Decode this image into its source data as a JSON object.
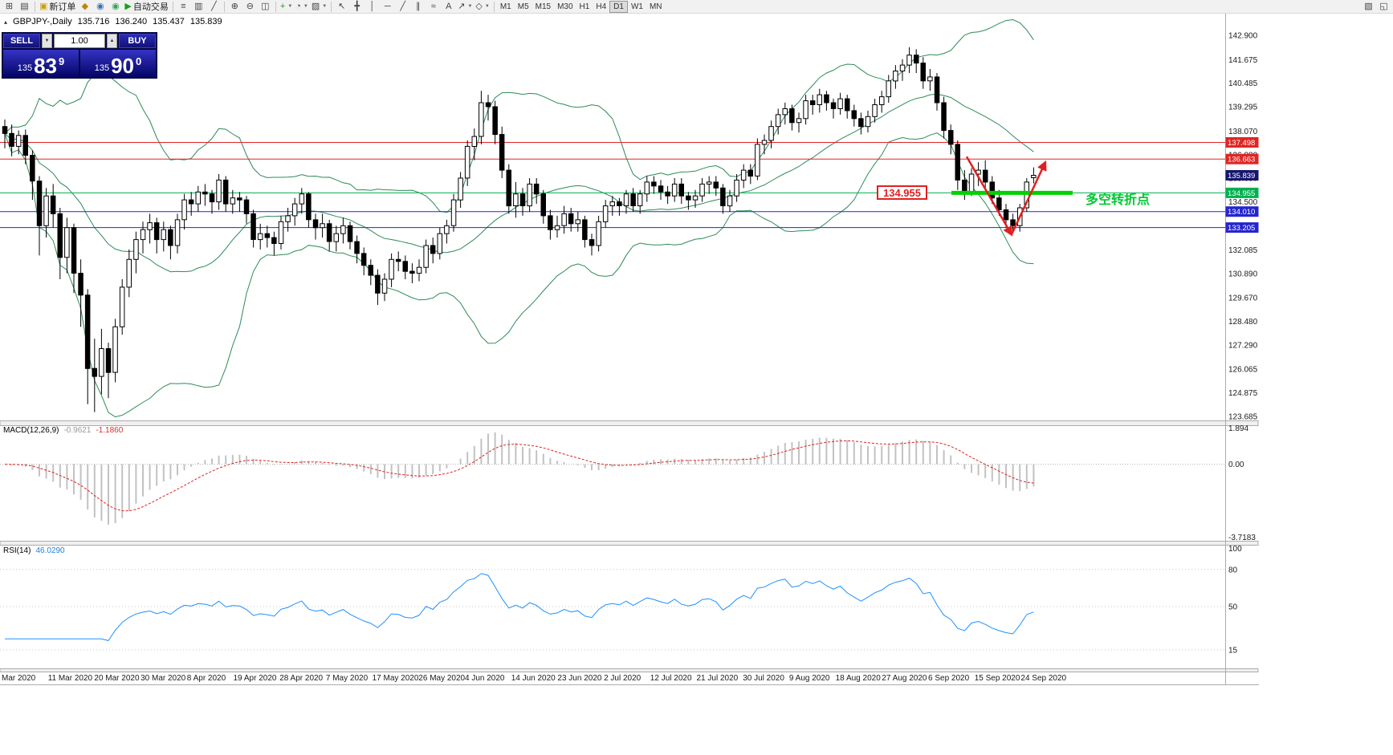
{
  "toolbar": {
    "items_left": [
      {
        "name": "new-chart-button",
        "glyph": "⊞"
      },
      {
        "name": "profiles-button",
        "glyph": "▤"
      },
      {
        "sep": true
      },
      {
        "name": "new-order-button",
        "glyph": "▣",
        "color": "#c8a016",
        "label": "新订单"
      },
      {
        "name": "experts-button",
        "glyph": "◆",
        "color": "#b8860b"
      },
      {
        "name": "alerts-button",
        "glyph": "◉",
        "color": "#3b6fb4"
      },
      {
        "name": "news-button",
        "glyph": "◉",
        "color": "#3ba05a"
      },
      {
        "name": "autotrading-button",
        "glyph": "▶",
        "color": "#18a018",
        "label": "自动交易"
      },
      {
        "sep": true
      },
      {
        "name": "chart-bars-button",
        "glyph": "≡"
      },
      {
        "name": "chart-candles-button",
        "glyph": "▥"
      },
      {
        "name": "chart-line-button",
        "glyph": "╱"
      },
      {
        "sep": true
      },
      {
        "name": "zoom-in-button",
        "glyph": "⊕"
      },
      {
        "name": "zoom-out-button",
        "glyph": "⊖"
      },
      {
        "name": "tile-windows-button",
        "glyph": "◫"
      },
      {
        "sep": true
      },
      {
        "name": "indicators-button",
        "glyph": "+",
        "color": "#18a018",
        "dropdown": true
      },
      {
        "name": "periods-button",
        "glyph": "◔",
        "dropdown": true
      },
      {
        "name": "templates-button",
        "glyph": "▨",
        "dropdown": true
      },
      {
        "sep": true
      },
      {
        "name": "cursor-button",
        "glyph": "↖"
      },
      {
        "name": "crosshair-button",
        "glyph": "╋"
      },
      {
        "name": "vline-button",
        "glyph": "│"
      },
      {
        "name": "hline-button",
        "glyph": "─"
      },
      {
        "name": "trendline-button",
        "glyph": "╱"
      },
      {
        "name": "channel-button",
        "glyph": "∥"
      },
      {
        "name": "fibonacci-button",
        "glyph": "≈"
      },
      {
        "name": "text-button",
        "glyph": "A"
      },
      {
        "name": "arrows-button",
        "glyph": "↗",
        "dropdown": true
      },
      {
        "name": "shapes-button",
        "glyph": "◇",
        "dropdown": true
      },
      {
        "sep": true
      }
    ],
    "timeframes": [
      "M1",
      "M5",
      "M15",
      "M30",
      "H1",
      "H4",
      "D1",
      "W1",
      "MN"
    ],
    "active_timeframe": "D1",
    "items_right": [
      {
        "name": "charts-window-button",
        "glyph": "▧"
      },
      {
        "name": "expand-button",
        "glyph": "◱"
      }
    ]
  },
  "symbol_info": {
    "symbol": "GBPJPY-,Daily",
    "open": "135.716",
    "high": "136.240",
    "low": "135.437",
    "close": "135.839"
  },
  "trade_panel": {
    "sell_label": "SELL",
    "buy_label": "BUY",
    "volume": "1.00",
    "sell_price": {
      "prefix": "135",
      "big": "83",
      "pip": "9"
    },
    "buy_price": {
      "prefix": "135",
      "big": "90",
      "pip": "0"
    }
  },
  "indicators": {
    "macd": {
      "name": "MACD(12,26,9)",
      "value1": "-0.9621",
      "value2": "-1.1860",
      "axis": [
        "1.894",
        "0.00",
        "-3.7183"
      ]
    },
    "rsi": {
      "name": "RSI(14)",
      "value": "46.0290",
      "axis": [
        "100",
        "80",
        "50",
        "15"
      ],
      "levels": [
        80,
        50,
        15
      ],
      "period": 14
    }
  },
  "annotations": {
    "price_callout": {
      "text": "134.955",
      "bar": 126.3,
      "price": 134.955
    },
    "turning_point": {
      "text": "多空转折点",
      "bar": 156.5,
      "price": 134.8,
      "color": "#00c832"
    },
    "support_segment": {
      "price": 134.955,
      "from_bar": 137.1,
      "to_bar": 154.6,
      "color": "#00d200",
      "width": 5
    },
    "v_pattern": {
      "color": "#e02020",
      "segments": [
        [
          [
            139.3,
            136.78
          ],
          [
            145.8,
            132.85
          ]
        ],
        [
          [
            145.8,
            132.85
          ],
          [
            150.7,
            136.5
          ]
        ]
      ]
    }
  },
  "chart_data": {
    "type": "candlestick",
    "symbol": "GBPJPY",
    "period": "Daily",
    "price_axis": [
      "142.900",
      "141.675",
      "140.485",
      "139.295",
      "138.070",
      "136.880",
      "135.690",
      "134.500",
      "132.085",
      "130.890",
      "129.670",
      "128.480",
      "127.290",
      "126.065",
      "124.875",
      "123.685"
    ],
    "hlines": [
      {
        "price": 137.498,
        "label": "137.498",
        "color": "#e02525",
        "label_bg": "#e02525"
      },
      {
        "price": 136.663,
        "label": "136.663",
        "color": "#e02525",
        "label_bg": "#e02525"
      },
      {
        "price": 134.955,
        "label": "134.955",
        "color": "#00b050",
        "label_bg": "#00b050"
      },
      {
        "price": 134.01,
        "label": "134.010",
        "color": "#2525d0",
        "label_bg": "#2525d0"
      },
      {
        "price": 133.205,
        "label": "133.205",
        "color": "#2525d0",
        "label_bg": "#2525d0"
      }
    ],
    "current_price": {
      "value": "135.839",
      "label_bg": "#16166e"
    },
    "bollinger": {
      "period": 20,
      "deviation": 2,
      "color": "#2e8b57"
    },
    "macd_params": {
      "fast": 12,
      "slow": 26,
      "signal": 9
    },
    "dates": [
      "Mar 2020",
      "11 Mar 2020",
      "20 Mar 2020",
      "30 Mar 2020",
      "8 Apr 2020",
      "19 Apr 2020",
      "28 Apr 2020",
      "7 May 2020",
      "17 May 2020",
      "26 May 2020",
      "4 Jun 2020",
      "14 Jun 2020",
      "23 Jun 2020",
      "2 Jul 2020",
      "12 Jul 2020",
      "21 Jul 2020",
      "30 Jul 2020",
      "9 Aug 2020",
      "18 Aug 2020",
      "27 Aug 2020",
      "6 Sep 2020",
      "15 Sep 2020",
      "24 Sep 2020"
    ],
    "candles": [
      [
        138.3,
        138.65,
        137.2,
        137.95
      ],
      [
        137.95,
        138.4,
        136.8,
        137.3
      ],
      [
        137.3,
        138.1,
        136.9,
        137.85
      ],
      [
        137.85,
        138.15,
        136.4,
        136.85
      ],
      [
        136.85,
        137.1,
        134.6,
        135.55
      ],
      [
        135.55,
        135.8,
        131.8,
        133.3
      ],
      [
        133.3,
        135.2,
        132.7,
        134.8
      ],
      [
        134.8,
        135.4,
        133.2,
        133.9
      ],
      [
        133.9,
        134.2,
        130.6,
        131.7
      ],
      [
        131.7,
        133.7,
        130.9,
        133.2
      ],
      [
        133.2,
        133.4,
        129.9,
        130.9
      ],
      [
        130.9,
        131.6,
        128.2,
        129.8
      ],
      [
        129.8,
        130.1,
        124.3,
        126.1
      ],
      [
        126.1,
        127.6,
        123.9,
        125.7
      ],
      [
        125.7,
        128.1,
        124.8,
        127.1
      ],
      [
        127.1,
        127.4,
        124.6,
        125.9
      ],
      [
        125.9,
        128.6,
        125.4,
        128.2
      ],
      [
        128.2,
        130.6,
        127.8,
        130.2
      ],
      [
        130.2,
        132.1,
        129.7,
        131.6
      ],
      [
        131.6,
        133.0,
        130.9,
        132.6
      ],
      [
        132.6,
        133.5,
        131.9,
        133.1
      ],
      [
        133.1,
        133.9,
        132.4,
        133.45
      ],
      [
        133.45,
        133.7,
        131.9,
        132.6
      ],
      [
        132.6,
        133.5,
        132.0,
        133.1
      ],
      [
        133.1,
        133.3,
        131.6,
        132.3
      ],
      [
        132.3,
        133.9,
        131.9,
        133.6
      ],
      [
        133.6,
        134.9,
        133.1,
        134.6
      ],
      [
        134.6,
        135.0,
        133.8,
        134.4
      ],
      [
        134.4,
        135.3,
        134.0,
        135.0
      ],
      [
        135.0,
        135.4,
        134.3,
        134.9
      ],
      [
        134.9,
        135.1,
        133.9,
        134.5
      ],
      [
        134.5,
        135.9,
        134.1,
        135.6
      ],
      [
        135.6,
        135.8,
        134.0,
        134.4
      ],
      [
        134.4,
        135.1,
        133.9,
        134.7
      ],
      [
        134.7,
        135.0,
        134.0,
        134.6
      ],
      [
        134.6,
        134.8,
        133.4,
        133.9
      ],
      [
        133.9,
        134.1,
        132.2,
        132.6
      ],
      [
        132.6,
        133.4,
        132.1,
        132.9
      ],
      [
        132.9,
        133.3,
        132.2,
        132.7
      ],
      [
        132.7,
        133.0,
        131.8,
        132.4
      ],
      [
        132.4,
        133.8,
        132.1,
        133.5
      ],
      [
        133.5,
        134.2,
        133.0,
        133.8
      ],
      [
        133.8,
        134.7,
        133.3,
        134.4
      ],
      [
        134.4,
        135.2,
        133.9,
        134.9
      ],
      [
        134.9,
        135.0,
        133.2,
        133.6
      ],
      [
        133.6,
        133.9,
        132.6,
        133.2
      ],
      [
        133.2,
        133.9,
        132.7,
        133.4
      ],
      [
        133.4,
        133.6,
        132.0,
        132.5
      ],
      [
        132.5,
        133.3,
        132.0,
        132.9
      ],
      [
        132.9,
        133.7,
        132.4,
        133.3
      ],
      [
        133.3,
        133.5,
        132.1,
        132.5
      ],
      [
        132.5,
        132.8,
        131.4,
        131.9
      ],
      [
        131.9,
        132.2,
        130.8,
        131.3
      ],
      [
        131.3,
        131.6,
        130.3,
        130.8
      ],
      [
        130.8,
        131.1,
        129.3,
        129.9
      ],
      [
        129.9,
        130.9,
        129.5,
        130.6
      ],
      [
        130.6,
        131.9,
        130.2,
        131.6
      ],
      [
        131.6,
        132.0,
        131.0,
        131.5
      ],
      [
        131.5,
        131.8,
        130.6,
        131.0
      ],
      [
        131.0,
        131.4,
        130.4,
        130.9
      ],
      [
        130.9,
        131.6,
        130.5,
        131.2
      ],
      [
        131.2,
        132.6,
        130.9,
        132.3
      ],
      [
        132.3,
        132.7,
        131.4,
        131.9
      ],
      [
        131.9,
        133.2,
        131.6,
        132.9
      ],
      [
        132.9,
        133.6,
        132.4,
        133.3
      ],
      [
        133.3,
        134.9,
        133.0,
        134.6
      ],
      [
        134.6,
        136.0,
        134.2,
        135.7
      ],
      [
        135.7,
        137.6,
        135.3,
        137.3
      ],
      [
        137.3,
        138.2,
        136.6,
        137.8
      ],
      [
        137.8,
        140.1,
        137.4,
        139.5
      ],
      [
        139.5,
        139.9,
        138.6,
        139.3
      ],
      [
        139.3,
        139.6,
        137.4,
        137.9
      ],
      [
        137.9,
        138.3,
        135.7,
        136.1
      ],
      [
        136.1,
        136.4,
        133.9,
        134.3
      ],
      [
        134.3,
        135.5,
        133.7,
        134.9
      ],
      [
        134.9,
        135.2,
        133.8,
        134.3
      ],
      [
        134.3,
        135.7,
        134.0,
        135.4
      ],
      [
        135.4,
        135.7,
        134.4,
        134.9
      ],
      [
        134.9,
        135.1,
        133.4,
        133.8
      ],
      [
        133.8,
        134.1,
        132.6,
        133.1
      ],
      [
        133.1,
        133.8,
        132.7,
        133.3
      ],
      [
        133.3,
        134.3,
        132.9,
        133.9
      ],
      [
        133.9,
        134.2,
        133.0,
        133.4
      ],
      [
        133.4,
        134.0,
        133.0,
        133.6
      ],
      [
        133.6,
        133.8,
        132.2,
        132.6
      ],
      [
        132.6,
        132.9,
        131.8,
        132.3
      ],
      [
        132.3,
        133.8,
        132.0,
        133.5
      ],
      [
        133.5,
        134.6,
        133.2,
        134.3
      ],
      [
        134.3,
        134.8,
        133.8,
        134.5
      ],
      [
        134.5,
        134.7,
        133.8,
        134.3
      ],
      [
        134.3,
        135.1,
        133.9,
        134.9
      ],
      [
        134.9,
        135.2,
        134.0,
        134.3
      ],
      [
        134.3,
        135.1,
        133.9,
        134.9
      ],
      [
        134.9,
        135.8,
        134.5,
        135.5
      ],
      [
        135.5,
        135.8,
        134.9,
        135.3
      ],
      [
        135.3,
        135.6,
        134.6,
        135.0
      ],
      [
        135.0,
        135.3,
        134.4,
        134.8
      ],
      [
        134.8,
        135.7,
        134.5,
        135.4
      ],
      [
        135.4,
        135.7,
        134.4,
        134.8
      ],
      [
        134.8,
        135.0,
        134.1,
        134.6
      ],
      [
        134.6,
        135.1,
        134.2,
        134.8
      ],
      [
        134.8,
        135.7,
        134.5,
        135.4
      ],
      [
        135.4,
        135.8,
        134.9,
        135.5
      ],
      [
        135.5,
        135.8,
        134.8,
        135.2
      ],
      [
        135.2,
        135.4,
        133.9,
        134.3
      ],
      [
        134.3,
        135.1,
        134.0,
        134.8
      ],
      [
        134.8,
        135.9,
        134.5,
        135.6
      ],
      [
        135.6,
        136.4,
        135.2,
        136.1
      ],
      [
        136.1,
        136.4,
        135.4,
        135.8
      ],
      [
        135.8,
        137.7,
        135.6,
        137.4
      ],
      [
        137.4,
        137.9,
        136.9,
        137.6
      ],
      [
        137.6,
        138.6,
        137.2,
        138.3
      ],
      [
        138.3,
        139.2,
        137.9,
        138.9
      ],
      [
        138.9,
        139.5,
        138.4,
        139.2
      ],
      [
        139.2,
        139.4,
        138.1,
        138.5
      ],
      [
        138.5,
        139.0,
        138.0,
        138.7
      ],
      [
        138.7,
        139.9,
        138.4,
        139.6
      ],
      [
        139.6,
        139.9,
        138.9,
        139.4
      ],
      [
        139.4,
        140.2,
        139.0,
        139.9
      ],
      [
        139.9,
        140.1,
        139.1,
        139.5
      ],
      [
        139.5,
        139.7,
        138.7,
        139.2
      ],
      [
        139.2,
        140.0,
        138.9,
        139.7
      ],
      [
        139.7,
        139.9,
        138.7,
        139.1
      ],
      [
        139.1,
        139.4,
        138.3,
        138.7
      ],
      [
        138.7,
        139.0,
        137.9,
        138.3
      ],
      [
        138.3,
        139.1,
        138.0,
        138.8
      ],
      [
        138.8,
        139.7,
        138.5,
        139.4
      ],
      [
        139.4,
        140.1,
        139.0,
        139.8
      ],
      [
        139.8,
        140.9,
        139.5,
        140.6
      ],
      [
        140.6,
        141.4,
        140.2,
        141.1
      ],
      [
        141.1,
        141.7,
        140.6,
        141.4
      ],
      [
        141.4,
        142.3,
        141.0,
        141.9
      ],
      [
        141.9,
        142.2,
        141.0,
        141.5
      ],
      [
        141.5,
        141.8,
        140.2,
        140.6
      ],
      [
        140.6,
        141.2,
        140.1,
        140.8
      ],
      [
        140.8,
        141.0,
        139.1,
        139.5
      ],
      [
        139.5,
        139.8,
        137.7,
        138.1
      ],
      [
        138.1,
        138.4,
        136.9,
        137.4
      ],
      [
        137.4,
        137.6,
        135.1,
        135.6
      ],
      [
        135.6,
        136.1,
        134.6,
        135.0
      ],
      [
        135.0,
        136.2,
        134.8,
        135.9
      ],
      [
        135.9,
        136.5,
        135.3,
        136.1
      ],
      [
        136.1,
        136.6,
        135.2,
        135.5
      ],
      [
        135.5,
        135.8,
        134.4,
        134.7
      ],
      [
        134.7,
        135.1,
        133.8,
        134.1
      ],
      [
        134.1,
        134.4,
        133.2,
        133.6
      ],
      [
        133.6,
        133.9,
        132.95,
        133.3
      ],
      [
        133.3,
        134.4,
        133.0,
        134.2
      ],
      [
        134.2,
        135.7,
        134.0,
        135.5
      ],
      [
        135.716,
        136.24,
        135.437,
        135.839
      ]
    ]
  }
}
